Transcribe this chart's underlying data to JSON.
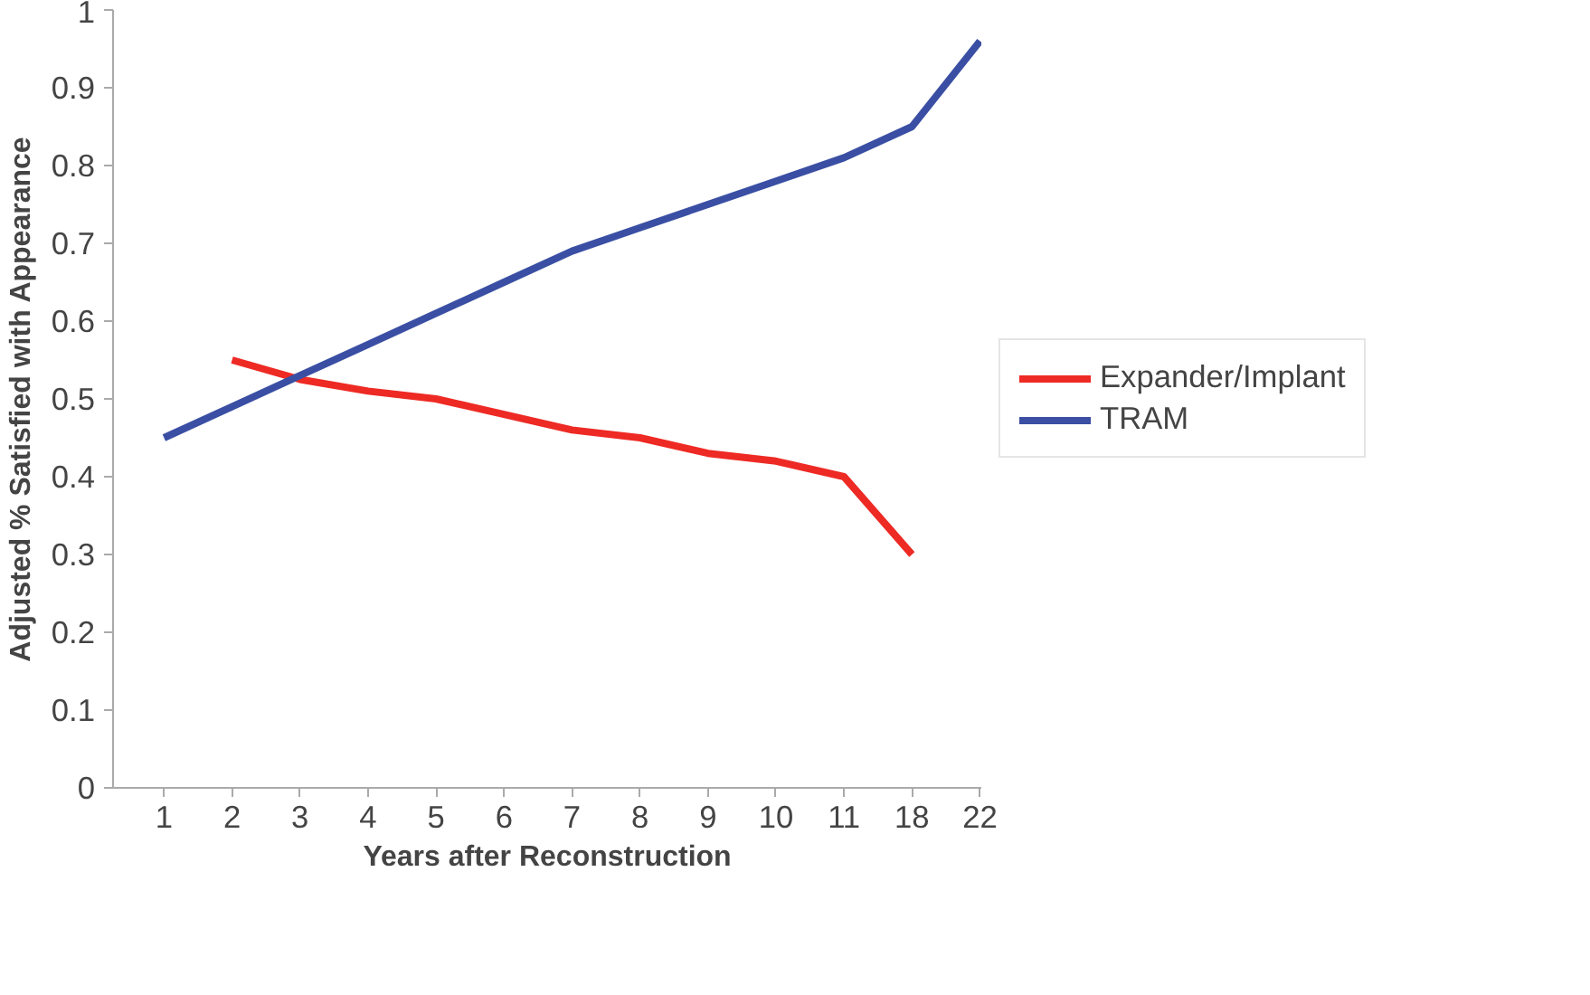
{
  "chart_data": {
    "type": "line",
    "xlabel": "Years after Reconstruction",
    "ylabel": "Adjusted % Satisfied with Appearance",
    "categories": [
      "1",
      "2",
      "3",
      "4",
      "5",
      "6",
      "7",
      "8",
      "9",
      "10",
      "11",
      "18",
      "22"
    ],
    "series": [
      {
        "name": "Expander/Implant",
        "color": "#ee2a24",
        "values": [
          null,
          0.55,
          0.525,
          0.51,
          0.5,
          0.48,
          0.46,
          0.45,
          0.43,
          0.42,
          0.4,
          0.3,
          null
        ]
      },
      {
        "name": "TRAM",
        "color": "#3a4fa3",
        "values": [
          0.45,
          0.49,
          0.53,
          0.57,
          0.61,
          0.65,
          0.69,
          0.72,
          0.75,
          0.78,
          0.81,
          0.85,
          0.96
        ]
      }
    ],
    "ylim": [
      0,
      1
    ],
    "yticks": [
      0,
      0.1,
      0.2,
      0.3,
      0.4,
      0.5,
      0.6,
      0.7,
      0.8,
      0.9,
      1
    ],
    "grid": false,
    "legend": "right",
    "marker": "none",
    "line_style": "solid"
  }
}
